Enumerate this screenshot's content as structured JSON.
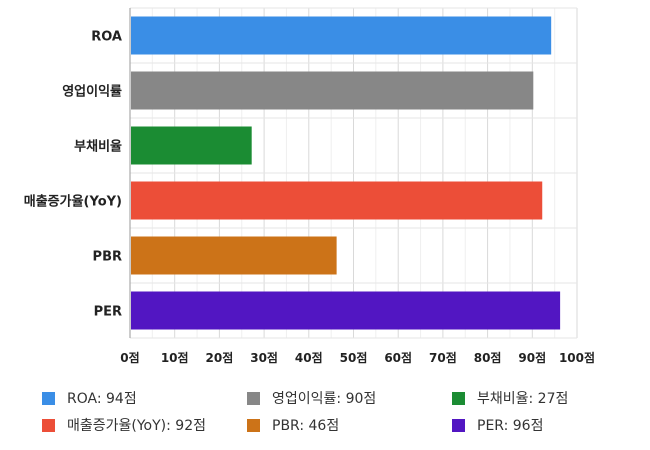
{
  "chart_data": {
    "type": "bar",
    "orientation": "horizontal",
    "categories": [
      "ROA",
      "영업이익률",
      "부채비율",
      "매출증가율(YoY)",
      "PBR",
      "PER"
    ],
    "values": [
      94,
      90,
      27,
      92,
      46,
      96
    ],
    "colors": [
      "#3a8ee6",
      "#878787",
      "#1b8c33",
      "#ec4e38",
      "#cc7318",
      "#5216c2"
    ],
    "xlim": [
      0,
      100
    ],
    "xticks": [
      "0점",
      "10점",
      "20점",
      "30점",
      "40점",
      "50점",
      "60점",
      "70점",
      "80점",
      "90점",
      "100점"
    ],
    "grid": true,
    "legend": {
      "position": "bottom",
      "items": [
        "ROA: 94점",
        "영업이익률: 90점",
        "부채비율: 27점",
        "매출증가율(YoY): 92점",
        "PBR: 46점",
        "PER: 96점"
      ]
    }
  }
}
